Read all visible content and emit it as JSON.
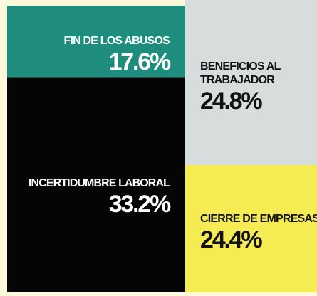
{
  "chart_data": {
    "type": "treemap",
    "categories": [
      "FIN DE LOS ABUSOS",
      "BENEFICIOS AL TRABAJADOR",
      "INCERTIDUMBRE LABORAL",
      "CIERRE DE EMPRESAS"
    ],
    "values": [
      17.6,
      24.8,
      33.2,
      24.4
    ],
    "value_labels": [
      "17.6%",
      "24.8%",
      "33.2%",
      "24.4%"
    ],
    "colors": [
      "#1f8d7d",
      "#d7dcdc",
      "#050505",
      "#f5eb52"
    ],
    "text_colors": [
      "#ffffff",
      "#111111",
      "#ffffff",
      "#111111"
    ]
  }
}
